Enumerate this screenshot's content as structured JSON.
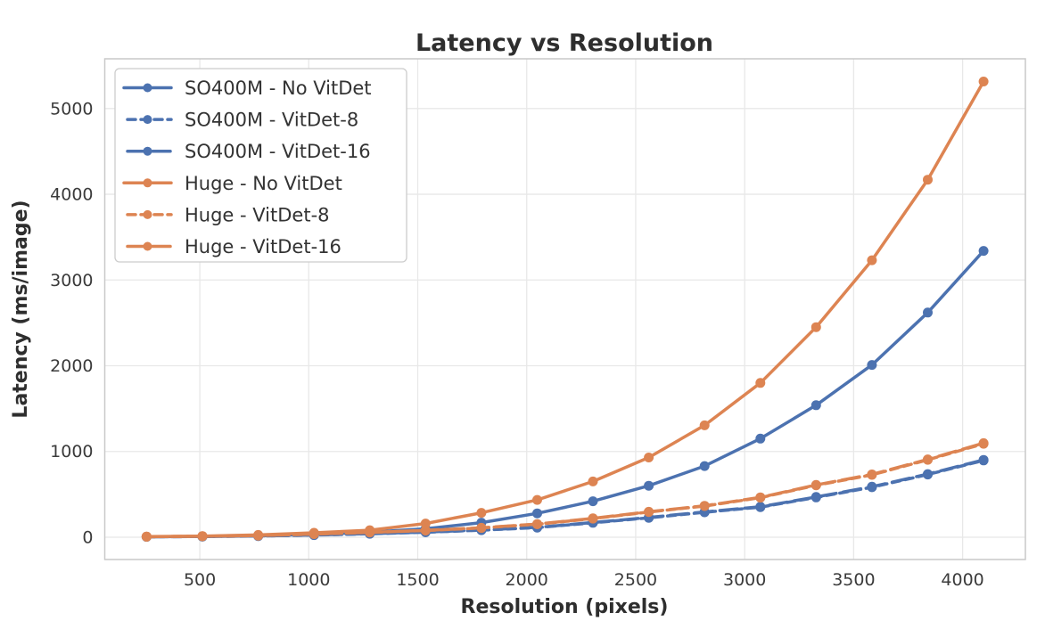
{
  "figure": {
    "background": "#ffffff",
    "grid_color": "#e8e8e8",
    "spine_color": "#c9c9c9",
    "legend_border_color": "#cccccc",
    "legend_background": "#ffffff"
  },
  "chart_data": {
    "type": "line",
    "title": "Latency vs Resolution",
    "xlabel": "Resolution (pixels)",
    "ylabel": "Latency (ms/image)",
    "x": [
      256,
      512,
      768,
      1024,
      1280,
      1536,
      1792,
      2048,
      2304,
      2560,
      2816,
      3072,
      3328,
      3584,
      3840,
      4096
    ],
    "xlim": [
      64,
      4288
    ],
    "ylim": [
      -260,
      5580
    ],
    "xticks": [
      500,
      1000,
      1500,
      2000,
      2500,
      3000,
      3500,
      4000
    ],
    "yticks": [
      0,
      1000,
      2000,
      3000,
      4000,
      5000
    ],
    "grid": true,
    "legend_position": "upper left",
    "series": [
      {
        "name": "SO400M - No VitDet",
        "color": "#4C72B0",
        "line_style": "solid",
        "marker": "circle",
        "values": [
          5,
          9,
          16,
          33,
          58,
          98,
          170,
          278,
          420,
          600,
          830,
          1150,
          1540,
          2010,
          2620,
          3340
        ]
      },
      {
        "name": "SO400M - VitDet-8",
        "color": "#4C72B0",
        "line_style": "dashed",
        "marker": "circle",
        "values": [
          5,
          8,
          13,
          25,
          40,
          58,
          82,
          112,
          168,
          226,
          291,
          351,
          464,
          583,
          731,
          896
        ]
      },
      {
        "name": "SO400M - VitDet-16",
        "color": "#4C72B0",
        "line_style": "long-dash",
        "marker": "circle",
        "values": [
          5,
          8,
          14,
          26,
          41,
          60,
          84,
          115,
          171,
          230,
          295,
          355,
          469,
          589,
          737,
          902
        ]
      },
      {
        "name": "Huge - No VitDet",
        "color": "#DD8452",
        "line_style": "solid",
        "marker": "circle",
        "values": [
          8,
          13,
          27,
          52,
          82,
          160,
          285,
          435,
          650,
          930,
          1305,
          1800,
          2450,
          3230,
          4170,
          5315
        ]
      },
      {
        "name": "Huge - VitDet-8",
        "color": "#DD8452",
        "line_style": "dashed",
        "marker": "circle",
        "values": [
          6,
          11,
          19,
          36,
          56,
          78,
          108,
          151,
          217,
          294,
          364,
          461,
          606,
          727,
          903,
          1090
        ]
      },
      {
        "name": "Huge - VitDet-16",
        "color": "#DD8452",
        "line_style": "long-dash",
        "marker": "circle",
        "values": [
          6,
          11,
          20,
          37,
          57,
          80,
          110,
          154,
          220,
          297,
          367,
          465,
          610,
          732,
          908,
          1097
        ]
      }
    ]
  }
}
